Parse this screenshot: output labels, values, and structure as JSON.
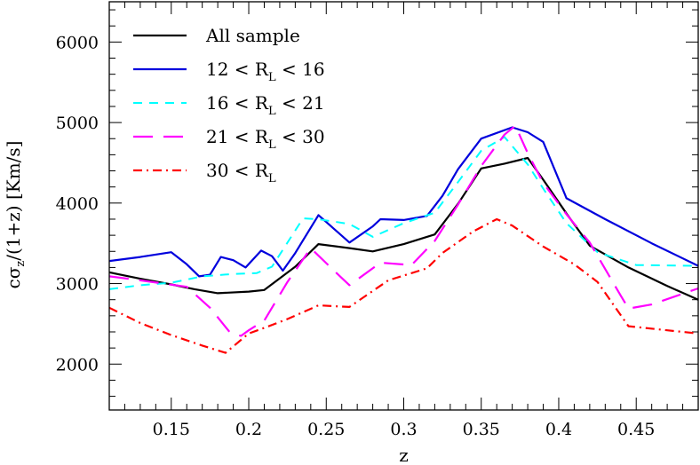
{
  "chart_data": {
    "type": "line",
    "xlabel": "z",
    "ylabel_parts": [
      "cσ",
      "z",
      "/(1+z)  [Km/s]"
    ],
    "xlim": [
      0.11,
      0.49
    ],
    "ylim": [
      1430,
      6500
    ],
    "xticks": [
      0.15,
      0.2,
      0.25,
      0.3,
      0.35,
      0.4,
      0.45
    ],
    "xtick_labels": [
      "0.15",
      "0.2",
      "0.25",
      "0.3",
      "0.35",
      "0.4",
      "0.45"
    ],
    "yticks": [
      2000,
      3000,
      4000,
      5000,
      6000
    ],
    "ytick_labels": [
      "2000",
      "3000",
      "4000",
      "5000",
      "6000"
    ],
    "legend_position": "top-left",
    "series": [
      {
        "legend_parts": [
          "All sample"
        ],
        "color": "#000000",
        "style": "solid",
        "x": [
          0.11,
          0.13,
          0.15,
          0.165,
          0.18,
          0.2,
          0.21,
          0.23,
          0.245,
          0.265,
          0.28,
          0.3,
          0.32,
          0.335,
          0.35,
          0.365,
          0.38,
          0.39,
          0.405,
          0.42,
          0.445,
          0.47,
          0.49
        ],
        "y": [
          3140,
          3060,
          2990,
          2930,
          2880,
          2900,
          2920,
          3210,
          3490,
          3440,
          3400,
          3490,
          3610,
          3990,
          4430,
          4490,
          4560,
          4290,
          3870,
          3470,
          3200,
          2970,
          2800
        ]
      },
      {
        "legend_parts": [
          "12  <  R",
          "L",
          "  <  16"
        ],
        "color": "#0000dd",
        "style": "solid",
        "x": [
          0.11,
          0.13,
          0.15,
          0.16,
          0.168,
          0.175,
          0.182,
          0.19,
          0.198,
          0.208,
          0.215,
          0.222,
          0.23,
          0.245,
          0.255,
          0.265,
          0.28,
          0.285,
          0.3,
          0.315,
          0.325,
          0.335,
          0.35,
          0.37,
          0.38,
          0.39,
          0.405,
          0.43,
          0.46,
          0.49
        ],
        "y": [
          3280,
          3330,
          3390,
          3240,
          3090,
          3110,
          3330,
          3290,
          3200,
          3410,
          3340,
          3160,
          3380,
          3850,
          3680,
          3510,
          3710,
          3800,
          3790,
          3840,
          4090,
          4420,
          4800,
          4940,
          4880,
          4760,
          4060,
          3800,
          3500,
          3220
        ]
      },
      {
        "legend_parts": [
          "16  <  R",
          "L",
          "  <  21"
        ],
        "color": "#00ffff",
        "style": "dashed",
        "x": [
          0.11,
          0.13,
          0.15,
          0.17,
          0.19,
          0.205,
          0.215,
          0.235,
          0.245,
          0.265,
          0.28,
          0.3,
          0.32,
          0.335,
          0.35,
          0.365,
          0.38,
          0.39,
          0.405,
          0.425,
          0.45,
          0.49
        ],
        "y": [
          2930,
          2980,
          3010,
          3090,
          3120,
          3130,
          3210,
          3810,
          3800,
          3740,
          3580,
          3750,
          3880,
          4260,
          4650,
          4820,
          4480,
          4180,
          3750,
          3390,
          3230,
          3220
        ]
      },
      {
        "legend_parts": [
          "21  <  R",
          "L",
          "  <  30"
        ],
        "color": "#ff00ff",
        "style": "longdash",
        "x": [
          0.11,
          0.13,
          0.16,
          0.175,
          0.188,
          0.195,
          0.2,
          0.21,
          0.225,
          0.24,
          0.255,
          0.265,
          0.285,
          0.305,
          0.32,
          0.335,
          0.35,
          0.365,
          0.372,
          0.38,
          0.39,
          0.405,
          0.42,
          0.44,
          0.445,
          0.46,
          0.49
        ],
        "y": [
          3090,
          3040,
          2960,
          2700,
          2390,
          2350,
          2420,
          2540,
          3020,
          3440,
          3160,
          2980,
          3260,
          3230,
          3530,
          3980,
          4460,
          4850,
          4960,
          4620,
          4250,
          3860,
          3510,
          2850,
          2690,
          2740,
          2940
        ]
      },
      {
        "legend_parts": [
          "30  <  R",
          "L"
        ],
        "color": "#ff0000",
        "style": "dashdot",
        "x": [
          0.11,
          0.13,
          0.15,
          0.17,
          0.185,
          0.2,
          0.21,
          0.225,
          0.245,
          0.265,
          0.29,
          0.305,
          0.315,
          0.325,
          0.345,
          0.36,
          0.37,
          0.39,
          0.41,
          0.425,
          0.445,
          0.47,
          0.49
        ],
        "y": [
          2700,
          2510,
          2360,
          2230,
          2140,
          2380,
          2450,
          2560,
          2730,
          2710,
          3040,
          3130,
          3190,
          3380,
          3650,
          3800,
          3720,
          3460,
          3240,
          3020,
          2470,
          2420,
          2380
        ]
      }
    ]
  }
}
